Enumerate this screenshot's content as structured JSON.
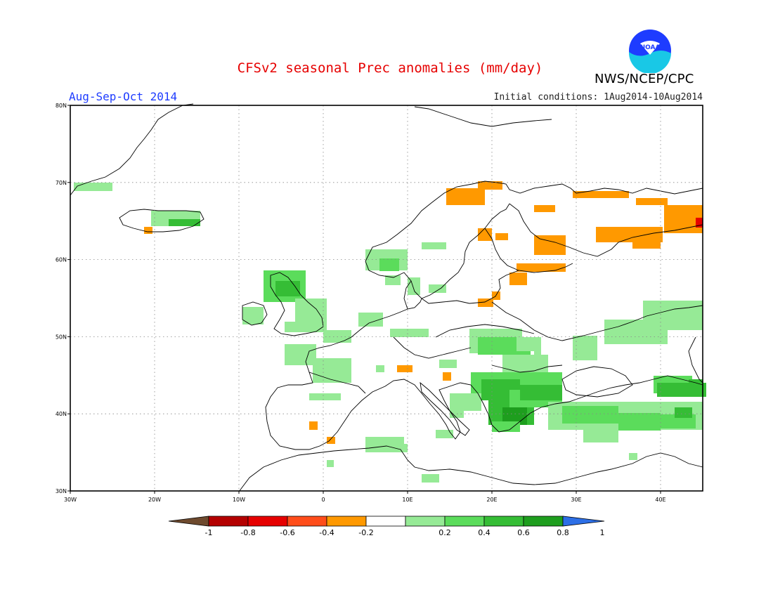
{
  "title": "CFSv2 seasonal Prec anomalies (mm/day)",
  "season_label": "Aug-Sep-Oct 2014",
  "initial_conditions": "Initial conditions: 1Aug2014-10Aug2014",
  "agency": "NWS/NCEP/CPC",
  "logo_text": "NOAA",
  "map": {
    "lon_range": [
      -30,
      45
    ],
    "lat_range": [
      30,
      80
    ],
    "lon_labels": [
      "30W",
      "20W",
      "10W",
      "0",
      "10E",
      "20E",
      "30E",
      "40E"
    ],
    "lat_labels": [
      "30N",
      "40N",
      "50N",
      "60N",
      "70N",
      "80N"
    ],
    "grid": "dotted"
  },
  "colorbar": {
    "labels": [
      "-1",
      "-0.8",
      "-0.6",
      "-0.4",
      "-0.2",
      "0.2",
      "0.4",
      "0.6",
      "0.8",
      "1"
    ],
    "colors": [
      "#6e4a2e",
      "#b40000",
      "#e60000",
      "#ff4d1a",
      "#ff9900",
      "#ffffff",
      "#96ea96",
      "#5bdc5b",
      "#35bd35",
      "#1e9e1e",
      "#2d6fe6"
    ]
  }
}
